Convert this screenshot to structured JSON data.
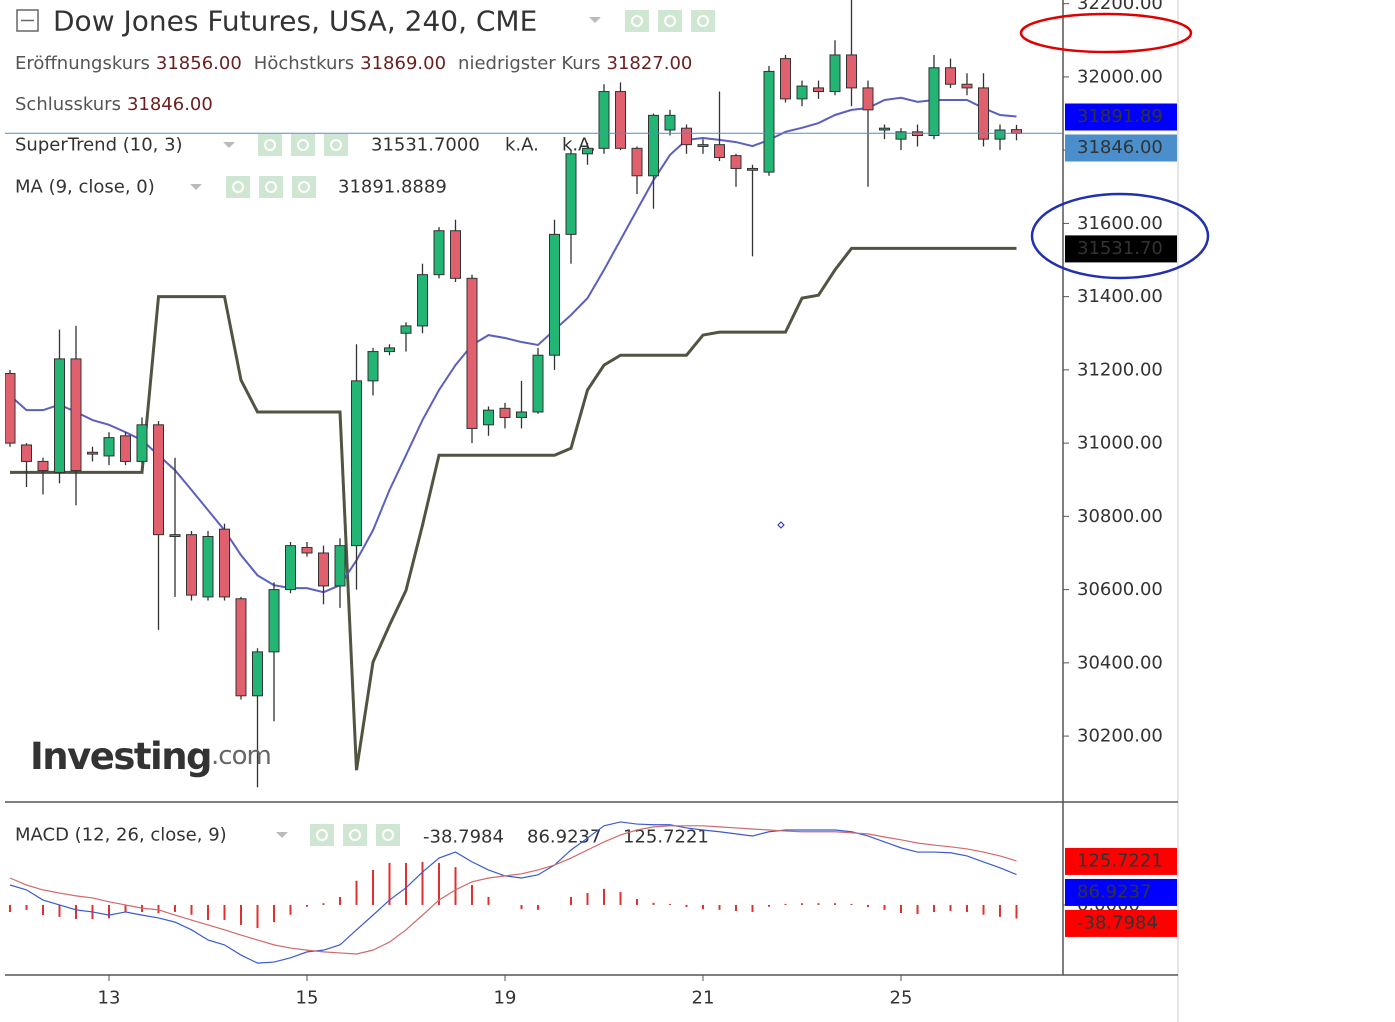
{
  "chart_data": [
    {
      "type": "candlestick",
      "title": "Dow Jones Futures, USA, 240, CME",
      "ohlc_legend": [
        {
          "label": "Eröffnungskurs",
          "value": "31856.00"
        },
        {
          "label": "Höchstkurs",
          "value": "31869.00"
        },
        {
          "label": "niedrigster Kurs",
          "value": "31827.00"
        },
        {
          "label": "Schlusskurs",
          "value": "31846.00"
        }
      ],
      "categories": [
        null,
        null,
        null,
        null,
        null,
        null,
        "13",
        null,
        null,
        null,
        null,
        null,
        null,
        null,
        null,
        null,
        null,
        null,
        "15",
        null,
        null,
        null,
        null,
        null,
        null,
        null,
        null,
        null,
        null,
        null,
        "19",
        null,
        null,
        null,
        null,
        null,
        null,
        null,
        null,
        null,
        null,
        null,
        "21",
        null,
        null,
        null,
        null,
        null,
        null,
        null,
        null,
        null,
        null,
        null,
        "25",
        null,
        null,
        null,
        null,
        null,
        null,
        null
      ],
      "open": [
        31190,
        30995,
        30950,
        30920,
        31230,
        30975,
        30965,
        31020,
        30950,
        31050,
        30750,
        30750,
        30580,
        30765,
        30575,
        30310,
        30430,
        30600,
        30715,
        30700,
        30610,
        30720,
        31170,
        31250,
        31300,
        31320,
        31460,
        31580,
        31450,
        31050,
        31095,
        31070,
        31085,
        31240,
        31570,
        31790,
        31805,
        31960,
        31805,
        31730,
        31855,
        31860,
        31815,
        31815,
        31785,
        31745,
        31740,
        32050,
        31940,
        31970,
        31960,
        32060,
        31970,
        31855,
        31830,
        31850,
        31840,
        32025,
        31980,
        31970,
        31830,
        31856
      ],
      "high": [
        31200,
        31000,
        30960,
        31310,
        31320,
        30990,
        31030,
        31030,
        31070,
        31060,
        30960,
        30760,
        30760,
        30780,
        30580,
        30440,
        30620,
        30730,
        30730,
        30720,
        30740,
        31270,
        31260,
        31270,
        31330,
        31490,
        31590,
        31610,
        31460,
        31100,
        31110,
        31170,
        31260,
        31610,
        31800,
        31820,
        31980,
        31985,
        31810,
        31900,
        31910,
        31870,
        31830,
        31960,
        31790,
        31760,
        32030,
        32060,
        31990,
        31990,
        32100,
        32210,
        31990,
        31870,
        31860,
        31870,
        32060,
        32050,
        32010,
        32010,
        31870,
        31869
      ],
      "low": [
        30990,
        30880,
        30860,
        30890,
        30830,
        30950,
        30940,
        30940,
        30945,
        30490,
        30580,
        30570,
        30570,
        30570,
        30300,
        30060,
        30240,
        30590,
        30690,
        30560,
        30550,
        30600,
        31130,
        31240,
        31250,
        31300,
        31450,
        31440,
        31000,
        31020,
        31040,
        31040,
        31080,
        31200,
        31490,
        31760,
        31790,
        31800,
        31680,
        31640,
        31840,
        31790,
        31790,
        31770,
        31700,
        31510,
        31730,
        31930,
        31920,
        31940,
        31950,
        31920,
        31700,
        31830,
        31800,
        31810,
        31830,
        31970,
        31950,
        31810,
        31800,
        31827
      ],
      "close": [
        31000,
        30950,
        30925,
        31230,
        30925,
        30970,
        31015,
        30950,
        31050,
        30750,
        30745,
        30585,
        30745,
        30580,
        30310,
        30430,
        30600,
        30720,
        30700,
        30610,
        30720,
        31170,
        31250,
        31260,
        31320,
        31460,
        31580,
        31450,
        31040,
        31090,
        31070,
        31085,
        31240,
        31570,
        31790,
        31805,
        31960,
        31805,
        31730,
        31895,
        31895,
        31815,
        31810,
        31780,
        31750,
        31750,
        32015,
        31940,
        31975,
        31960,
        32060,
        31970,
        31910,
        31860,
        31850,
        31840,
        32025,
        31980,
        31970,
        31830,
        31855,
        31846
      ],
      "up_color": "#22b573",
      "down_color": "#e0606e",
      "overlays": [
        {
          "name": "SuperTrend (10, 3)",
          "color": "#505440",
          "legend_values": [
            "31531.7000",
            "k.A.",
            "k.A."
          ],
          "legend_color": "#111111",
          "values": [
            30920,
            30920,
            30920,
            30920,
            30920,
            30920,
            30920,
            30920,
            30920,
            31400,
            31400,
            31400,
            31400,
            31400,
            31172,
            31085,
            31085,
            31085,
            31085,
            31085,
            31085,
            30107,
            30402,
            30503,
            30598,
            30776,
            30967,
            30967,
            30967,
            30967,
            30967,
            30967,
            30967,
            30967,
            30986,
            31145,
            31213,
            31240,
            31240,
            31240,
            31240,
            31240,
            31295,
            31303,
            31303,
            31303,
            31303,
            31303,
            31396,
            31404,
            31473,
            31531.7,
            31531.7,
            31531.7,
            31531.7,
            31531.7,
            31531.7,
            31531.7,
            31531.7,
            31531.7,
            31531.7,
            31531.7
          ]
        },
        {
          "name": "MA (9, close, 0)",
          "color": "#5a5fc0",
          "legend_values": [
            "31891.8889"
          ],
          "legend_color": "#1a1aff",
          "values": [
            31130,
            31090,
            31090,
            31105,
            31085,
            31063,
            31050,
            31030,
            31008,
            30967,
            30926,
            30872,
            30817,
            30762,
            30694,
            30639,
            30612,
            30604,
            30604,
            30593,
            30612,
            30680,
            30762,
            30872,
            30967,
            31063,
            31145,
            31213,
            31268,
            31295,
            31287,
            31276,
            31268,
            31309,
            31350,
            31396,
            31473,
            31555,
            31637,
            31718,
            31787,
            31828,
            31833,
            31828,
            31822,
            31811,
            31828,
            31850,
            31861,
            31874,
            31896,
            31910,
            31915,
            31937,
            31943,
            31932,
            31937,
            31937,
            31937,
            31915,
            31896,
            31891.8889
          ]
        }
      ],
      "price_tags": [
        {
          "value": 31891.89,
          "label": "31891.89",
          "color": "#0000ff"
        },
        {
          "value": 31846,
          "label": "31846.00",
          "color": "#4a8fcb"
        },
        {
          "value": 31531.7,
          "label": "31531.70",
          "color": "#000000"
        }
      ],
      "ylim": [
        30020,
        32210
      ],
      "yticks": [
        {
          "value": 30200,
          "label": "30200.00"
        },
        {
          "value": 30400,
          "label": "30400.00"
        },
        {
          "value": 30600,
          "label": "30600.00"
        },
        {
          "value": 30800,
          "label": "30800.00"
        },
        {
          "value": 31000,
          "label": "31000.00"
        },
        {
          "value": 31200,
          "label": "31200.00"
        },
        {
          "value": 31400,
          "label": "31400.00"
        },
        {
          "value": 31600,
          "label": "31600.00"
        },
        {
          "value": 31800,
          "label": "31800.00"
        },
        {
          "value": 32000,
          "label": "32000.00"
        },
        {
          "value": 32200,
          "label": "32200.00"
        }
      ],
      "logo": {
        "main": "Investing",
        "suffix": ".com"
      }
    },
    {
      "type": "macd",
      "title": "MACD (12, 26, close, 9)",
      "ylim": [
        -200,
        294
      ],
      "yticks": [
        {
          "value": 0,
          "label": "0.0000"
        }
      ],
      "series": [
        {
          "kind": "histogram",
          "color": "#e03030",
          "value_label": "-38.7984",
          "tag_color": "#ff0000",
          "values": [
            -20,
            -14,
            -29,
            -34,
            -40,
            -40,
            -38,
            -20,
            -20,
            -23,
            -20,
            -28,
            -43,
            -43,
            -57,
            -66,
            -49,
            -28,
            -5,
            5,
            23,
            69,
            100,
            120,
            120,
            123,
            120,
            108,
            57,
            23,
            0,
            -12,
            -14,
            0,
            23,
            34,
            46,
            37,
            17,
            6,
            3,
            -6,
            -12,
            -14,
            -17,
            -20,
            -5,
            3,
            5,
            5,
            5,
            3,
            -6,
            -14,
            -23,
            -26,
            -20,
            -17,
            -20,
            -28,
            -34,
            -38.7984
          ]
        },
        {
          "kind": "line",
          "color": "#3a5bd0",
          "value_label": "86.9237",
          "tag_color": "#0000ff",
          "values": [
            57,
            43,
            14,
            0,
            -14,
            -20,
            -29,
            -20,
            -29,
            -37,
            -49,
            -71,
            -100,
            -114,
            -143,
            -166,
            -163,
            -151,
            -134,
            -129,
            -114,
            -71,
            -29,
            14,
            49,
            94,
            134,
            151,
            123,
            100,
            83,
            77,
            86,
            114,
            157,
            191,
            226,
            237,
            231,
            229,
            229,
            220,
            214,
            209,
            203,
            197,
            209,
            214,
            214,
            214,
            214,
            209,
            197,
            180,
            163,
            151,
            151,
            149,
            140,
            123,
            106,
            86.9237
          ]
        },
        {
          "kind": "line",
          "color": "#d06a6a",
          "value_label": "125.7221",
          "tag_color": "#ff0000",
          "values": [
            77,
            57,
            43,
            34,
            26,
            20,
            9,
            0,
            -9,
            -14,
            -29,
            -43,
            -57,
            -71,
            -86,
            -100,
            -114,
            -123,
            -129,
            -134,
            -137,
            -140,
            -129,
            -106,
            -71,
            -29,
            14,
            43,
            66,
            77,
            83,
            89,
            100,
            114,
            134,
            157,
            180,
            200,
            214,
            223,
            226,
            226,
            226,
            223,
            220,
            217,
            214,
            211,
            209,
            209,
            209,
            206,
            203,
            194,
            186,
            177,
            171,
            166,
            160,
            151,
            140,
            125.7221
          ]
        }
      ]
    }
  ]
}
